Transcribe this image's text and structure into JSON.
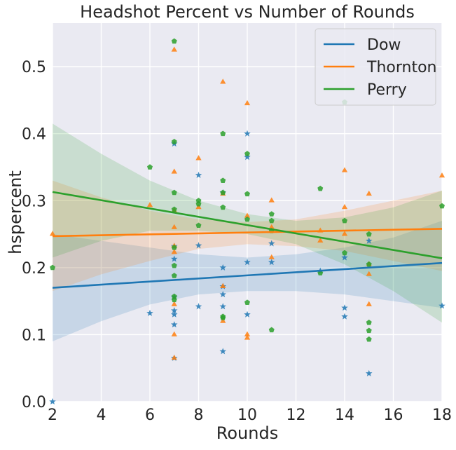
{
  "chart_data": {
    "type": "scatter",
    "title": "Headshot Percent vs Number of Rounds",
    "xlabel": "Rounds",
    "ylabel": "hspercent",
    "xlim": [
      2,
      18
    ],
    "ylim": [
      0,
      0.565
    ],
    "xticks": [
      2,
      4,
      6,
      8,
      10,
      12,
      14,
      16,
      18
    ],
    "yticks": [
      0.0,
      0.1,
      0.2,
      0.3,
      0.4,
      0.5
    ],
    "xtick_labels": [
      "2",
      "4",
      "6",
      "8",
      "10",
      "12",
      "14",
      "16",
      "18"
    ],
    "ytick_labels": [
      "0.0",
      "0.1",
      "0.2",
      "0.3",
      "0.4",
      "0.5"
    ],
    "grid": true,
    "background": "#eaeaf2",
    "legend_position": "top-right",
    "series": [
      {
        "name": "Dow",
        "color": "#1f77b4",
        "marker": "star",
        "points": [
          [
            2,
            0.0
          ],
          [
            6,
            0.132
          ],
          [
            7,
            0.385
          ],
          [
            7,
            0.232
          ],
          [
            7,
            0.213
          ],
          [
            7,
            0.156
          ],
          [
            7,
            0.136
          ],
          [
            7,
            0.13
          ],
          [
            7,
            0.115
          ],
          [
            7,
            0.065
          ],
          [
            8,
            0.338
          ],
          [
            8,
            0.233
          ],
          [
            8,
            0.142
          ],
          [
            9,
            0.312
          ],
          [
            9,
            0.2
          ],
          [
            9,
            0.172
          ],
          [
            9,
            0.16
          ],
          [
            9,
            0.142
          ],
          [
            9,
            0.075
          ],
          [
            10,
            0.4
          ],
          [
            10,
            0.365
          ],
          [
            10,
            0.208
          ],
          [
            10,
            0.13
          ],
          [
            11,
            0.236
          ],
          [
            11,
            0.208
          ],
          [
            13,
            0.195
          ],
          [
            14,
            0.215
          ],
          [
            14,
            0.14
          ],
          [
            14,
            0.127
          ],
          [
            15,
            0.24
          ],
          [
            15,
            0.042
          ],
          [
            18,
            0.143
          ]
        ],
        "regression": {
          "x": [
            2,
            18
          ],
          "y": [
            0.17,
            0.207
          ]
        },
        "ci_upper": [
          0.25,
          0.24,
          0.23,
          0.22,
          0.215,
          0.22,
          0.23,
          0.245,
          0.27
        ],
        "ci_lower": [
          0.09,
          0.12,
          0.145,
          0.16,
          0.165,
          0.165,
          0.16,
          0.15,
          0.14
        ]
      },
      {
        "name": "Thornton",
        "color": "#ff7f0e",
        "marker": "triangle",
        "points": [
          [
            2,
            0.25
          ],
          [
            6,
            0.293
          ],
          [
            7,
            0.525
          ],
          [
            7,
            0.343
          ],
          [
            7,
            0.285
          ],
          [
            7,
            0.26
          ],
          [
            7,
            0.232
          ],
          [
            7,
            0.223
          ],
          [
            7,
            0.145
          ],
          [
            7,
            0.1
          ],
          [
            7,
            0.065
          ],
          [
            8,
            0.363
          ],
          [
            8,
            0.29
          ],
          [
            9,
            0.477
          ],
          [
            9,
            0.31
          ],
          [
            9,
            0.172
          ],
          [
            9,
            0.12
          ],
          [
            10,
            0.445
          ],
          [
            10,
            0.277
          ],
          [
            10,
            0.1
          ],
          [
            10,
            0.095
          ],
          [
            11,
            0.3
          ],
          [
            11,
            0.26
          ],
          [
            11,
            0.215
          ],
          [
            13,
            0.255
          ],
          [
            13,
            0.24
          ],
          [
            14,
            0.345
          ],
          [
            14,
            0.29
          ],
          [
            14,
            0.25
          ],
          [
            15,
            0.31
          ],
          [
            15,
            0.205
          ],
          [
            15,
            0.19
          ],
          [
            15,
            0.145
          ],
          [
            18,
            0.337
          ]
        ],
        "regression": {
          "x": [
            2,
            18
          ],
          "y": [
            0.247,
            0.258
          ]
        },
        "ci_upper": [
          0.33,
          0.305,
          0.285,
          0.272,
          0.268,
          0.272,
          0.285,
          0.3,
          0.315
        ],
        "ci_lower": [
          0.165,
          0.19,
          0.21,
          0.228,
          0.235,
          0.232,
          0.225,
          0.21,
          0.195
        ]
      },
      {
        "name": "Perry",
        "color": "#2ca02c",
        "marker": "pentagon",
        "points": [
          [
            2,
            0.2
          ],
          [
            6,
            0.35
          ],
          [
            7,
            0.538
          ],
          [
            7,
            0.388
          ],
          [
            7,
            0.312
          ],
          [
            7,
            0.287
          ],
          [
            7,
            0.23
          ],
          [
            7,
            0.203
          ],
          [
            7,
            0.188
          ],
          [
            7,
            0.157
          ],
          [
            7,
            0.152
          ],
          [
            8,
            0.3
          ],
          [
            8,
            0.295
          ],
          [
            8,
            0.263
          ],
          [
            9,
            0.4
          ],
          [
            9,
            0.33
          ],
          [
            9,
            0.312
          ],
          [
            9,
            0.29
          ],
          [
            9,
            0.127
          ],
          [
            9,
            0.125
          ],
          [
            10,
            0.37
          ],
          [
            10,
            0.31
          ],
          [
            10,
            0.272
          ],
          [
            10,
            0.148
          ],
          [
            11,
            0.28
          ],
          [
            11,
            0.27
          ],
          [
            11,
            0.255
          ],
          [
            11,
            0.107
          ],
          [
            13,
            0.318
          ],
          [
            13,
            0.192
          ],
          [
            14,
            0.447
          ],
          [
            14,
            0.27
          ],
          [
            14,
            0.222
          ],
          [
            15,
            0.25
          ],
          [
            15,
            0.205
          ],
          [
            15,
            0.118
          ],
          [
            15,
            0.106
          ],
          [
            15,
            0.093
          ],
          [
            18,
            0.292
          ]
        ],
        "regression": {
          "x": [
            2,
            18
          ],
          "y": [
            0.313,
            0.214
          ]
        },
        "ci_upper": [
          0.415,
          0.37,
          0.33,
          0.3,
          0.28,
          0.27,
          0.275,
          0.29,
          0.315
        ],
        "ci_lower": [
          0.215,
          0.24,
          0.255,
          0.255,
          0.25,
          0.235,
          0.205,
          0.165,
          0.118
        ]
      }
    ]
  }
}
